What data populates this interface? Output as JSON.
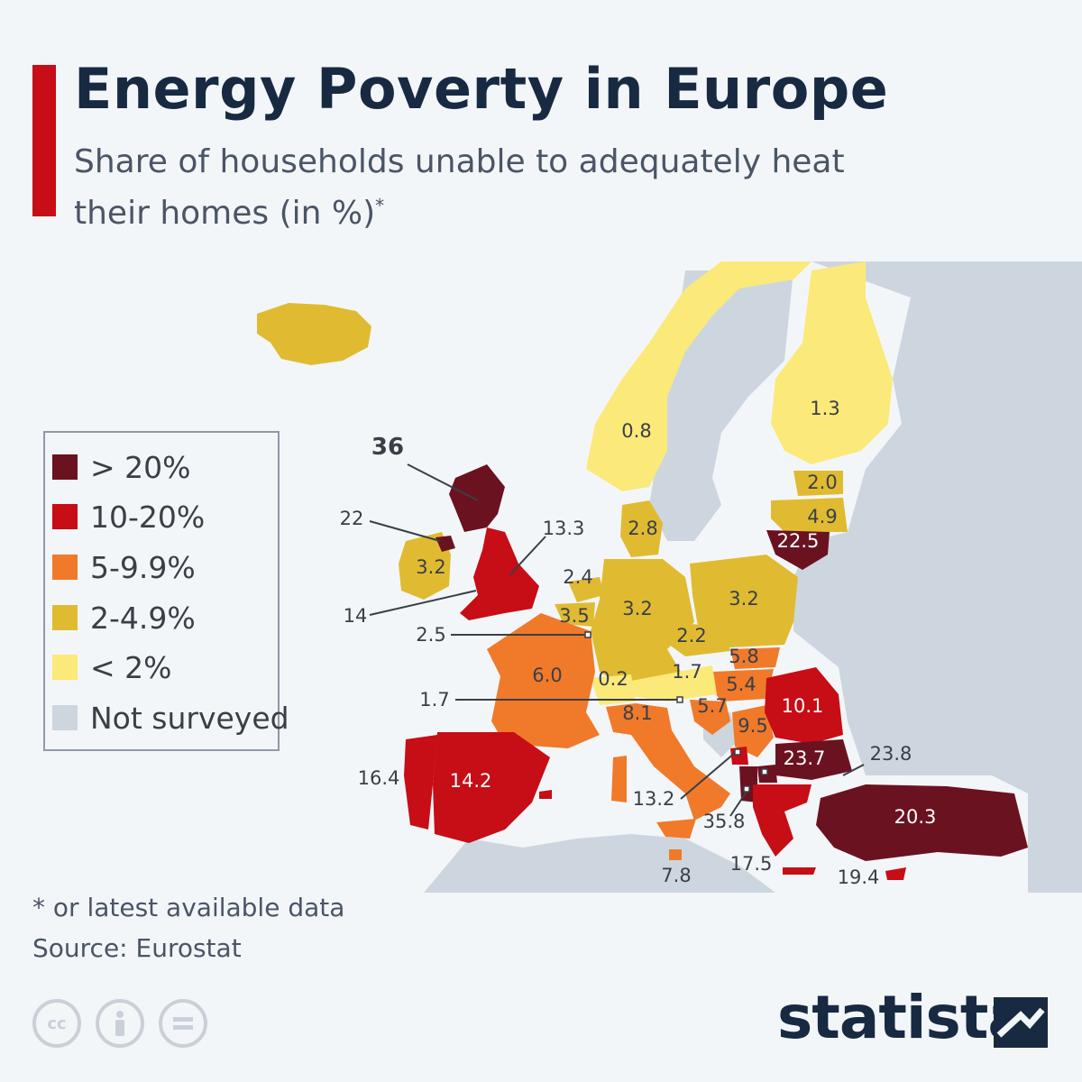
{
  "header": {
    "title": "Energy Poverty in Europe",
    "subtitle": "Share of households unable to adequately heat their homes (in %)",
    "subtitle_mark": "*"
  },
  "legend": {
    "items": [
      {
        "label": "> 20%",
        "color": "#6b1220"
      },
      {
        "label": "10-20%",
        "color": "#c70d15"
      },
      {
        "label": "5-9.9%",
        "color": "#f07a2a"
      },
      {
        "label": "2-4.9%",
        "color": "#e0bb31"
      },
      {
        "label": "< 2%",
        "color": "#fbe97a"
      },
      {
        "label": "Not surveyed",
        "color": "#cdd6de"
      }
    ]
  },
  "map_values": {
    "finland": "1.3",
    "norway": "0.8",
    "sweden": "",
    "estonia": "2.0",
    "latvia": "4.9",
    "lithuania": "22.5",
    "denmark": "2.8",
    "netherlands": "2.4",
    "belgium": "3.5",
    "luxembourg": "2.5",
    "germany": "3.2",
    "poland": "3.2",
    "czechia": "2.2",
    "slovakia": "5.8",
    "hungary": "5.4",
    "austria": "1.7",
    "slovenia": "5.7",
    "switzerland": "0.2",
    "liechtenstein": "1.7",
    "france": "6.0",
    "italy": "8.1",
    "croatia": "5.7",
    "serbia": "9.5",
    "romania": "10.1",
    "bulgaria": "23.7",
    "north_macedonia": "23.8",
    "albania": "35.8",
    "montenegro": "13.2",
    "greece": "17.5",
    "cyprus": "19.4",
    "turkey": "20.3",
    "malta": "7.8",
    "spain": "14.2",
    "portugal": "16.4",
    "ireland": "3.2",
    "northern_ireland": "22",
    "scotland": "36",
    "wales": "14",
    "england": "13.3"
  },
  "footer": {
    "footnote": "* or latest available data",
    "source": "Source: Eurostat",
    "brand": "statista",
    "cc_icons": [
      "cc-icon",
      "attribution-icon",
      "no-derivatives-icon"
    ]
  },
  "colors": {
    "accent": "#c70d15",
    "over20": "#6b1220",
    "r10_20": "#c70d15",
    "r5_10": "#f07a2a",
    "r2_5": "#e0bb31",
    "under2": "#fbe97a",
    "not_surveyed": "#cdd6de"
  }
}
